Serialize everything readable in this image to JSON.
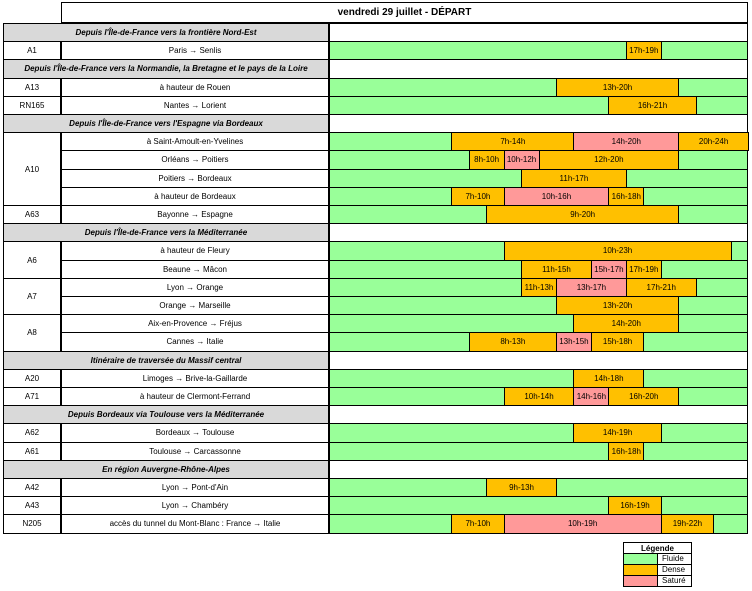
{
  "title": "vendredi 29 juillet - DÉPART",
  "colors": {
    "fluide": "#99ff99",
    "dense": "#ffc000",
    "sature": "#ff9999"
  },
  "sections": [
    {
      "label": "Depuis l'Île-de-France vers la frontière Nord-Est",
      "roads": [
        {
          "code": "A1",
          "rows": [
            {
              "route": "Paris → Senlis",
              "segs": [
                [
                  "D",
                  "17h-19h",
                  17,
                  19
                ]
              ]
            }
          ]
        }
      ]
    },
    {
      "label": "Depuis l'Île-de-France vers la Normandie, la Bretagne et le pays de la Loire",
      "roads": [
        {
          "code": "A13",
          "rows": [
            {
              "route": "à hauteur de Rouen",
              "segs": [
                [
                  "D",
                  "13h-20h",
                  13,
                  20
                ]
              ]
            }
          ]
        },
        {
          "code": "RN165",
          "rows": [
            {
              "route": "Nantes → Lorient",
              "segs": [
                [
                  "D",
                  "16h-21h",
                  16,
                  21
                ]
              ]
            }
          ]
        }
      ]
    },
    {
      "label": "Depuis l'Île-de-France vers l'Espagne via Bordeaux",
      "roads": [
        {
          "code": "A10",
          "rows": [
            {
              "route": "à Saint-Amoult-en-Yvelines",
              "segs": [
                [
                  "D",
                  "7h-14h",
                  7,
                  14
                ],
                [
                  "S",
                  "14h-20h",
                  14,
                  20
                ],
                [
                  "D",
                  "20h-24h",
                  20,
                  24
                ]
              ]
            },
            {
              "route": "Orléans → Poitiers",
              "segs": [
                [
                  "D",
                  "8h-10h",
                  8,
                  10
                ],
                [
                  "S",
                  "10h-12h",
                  10,
                  12
                ],
                [
                  "D",
                  "12h-20h",
                  12,
                  20
                ]
              ]
            },
            {
              "route": "Poitiers → Bordeaux",
              "segs": [
                [
                  "D",
                  "11h-17h",
                  11,
                  17
                ]
              ]
            },
            {
              "route": "à hauteur de Bordeaux",
              "segs": [
                [
                  "D",
                  "7h-10h",
                  7,
                  10
                ],
                [
                  "S",
                  "10h-16h",
                  10,
                  16
                ],
                [
                  "D",
                  "16h-18h",
                  16,
                  18
                ]
              ]
            }
          ]
        },
        {
          "code": "A63",
          "rows": [
            {
              "route": "Bayonne → Espagne",
              "segs": [
                [
                  "D",
                  "9h-20h",
                  9,
                  20
                ]
              ]
            }
          ]
        }
      ]
    },
    {
      "label": "Depuis l'Île-de-France vers la Méditerranée",
      "roads": [
        {
          "code": "A6",
          "rows": [
            {
              "route": "à hauteur de Fleury",
              "segs": [
                [
                  "D",
                  "10h-23h",
                  10,
                  23
                ]
              ]
            },
            {
              "route": "Beaune → Mâcon",
              "segs": [
                [
                  "D",
                  "11h-15h",
                  11,
                  15
                ],
                [
                  "S",
                  "15h-17h",
                  15,
                  17
                ],
                [
                  "D",
                  "17h-19h",
                  17,
                  19
                ]
              ]
            }
          ]
        },
        {
          "code": "A7",
          "rows": [
            {
              "route": "Lyon → Orange",
              "segs": [
                [
                  "D",
                  "11h-13h",
                  11,
                  13
                ],
                [
                  "S",
                  "13h-17h",
                  13,
                  17
                ],
                [
                  "D",
                  "17h-21h",
                  17,
                  21
                ]
              ]
            },
            {
              "route": "Orange → Marseille",
              "segs": [
                [
                  "D",
                  "13h-20h",
                  13,
                  20
                ]
              ]
            }
          ]
        },
        {
          "code": "A8",
          "rows": [
            {
              "route": "Aix-en-Provence → Fréjus",
              "segs": [
                [
                  "D",
                  "14h-20h",
                  14,
                  20
                ]
              ]
            },
            {
              "route": "Cannes → Italie",
              "segs": [
                [
                  "D",
                  "8h-13h",
                  8,
                  13
                ],
                [
                  "S",
                  "13h-15h",
                  13,
                  15
                ],
                [
                  "D",
                  "15h-18h",
                  15,
                  18
                ]
              ]
            }
          ]
        }
      ]
    },
    {
      "label": "Itinéraire de traversée du Massif central",
      "roads": [
        {
          "code": "A20",
          "rows": [
            {
              "route": "Limoges → Brive-la-Gaillarde",
              "segs": [
                [
                  "D",
                  "14h-18h",
                  14,
                  18
                ]
              ]
            }
          ]
        },
        {
          "code": "A71",
          "rows": [
            {
              "route": "à hauteur de Clermont-Ferrand",
              "segs": [
                [
                  "D",
                  "10h-14h",
                  10,
                  14
                ],
                [
                  "S",
                  "14h-16h",
                  14,
                  16
                ],
                [
                  "D",
                  "16h-20h",
                  16,
                  20
                ]
              ]
            }
          ]
        }
      ]
    },
    {
      "label": "Depuis Bordeaux via Toulouse vers la Méditerranée",
      "roads": [
        {
          "code": "A62",
          "rows": [
            {
              "route": "Bordeaux → Toulouse",
              "segs": [
                [
                  "D",
                  "14h-19h",
                  14,
                  19
                ]
              ]
            }
          ]
        },
        {
          "code": "A61",
          "rows": [
            {
              "route": "Toulouse → Carcassonne",
              "segs": [
                [
                  "D",
                  "16h-18h",
                  16,
                  18
                ]
              ]
            }
          ]
        }
      ]
    },
    {
      "label": "En région Auvergne-Rhône-Alpes",
      "roads": [
        {
          "code": "A42",
          "rows": [
            {
              "route": "Lyon → Pont-d'Ain",
              "segs": [
                [
                  "D",
                  "9h-13h",
                  9,
                  13
                ]
              ]
            }
          ]
        },
        {
          "code": "A43",
          "rows": [
            {
              "route": "Lyon → Chambéry",
              "segs": [
                [
                  "D",
                  "16h-19h",
                  16,
                  19
                ]
              ]
            }
          ]
        },
        {
          "code": "N205",
          "rows": [
            {
              "route": "accès du tunnel du Mont-Blanc : France → Italie",
              "segs": [
                [
                  "D",
                  "7h-10h",
                  7,
                  10
                ],
                [
                  "S",
                  "10h-19h",
                  10,
                  19
                ],
                [
                  "D",
                  "19h-22h",
                  19,
                  22
                ]
              ]
            }
          ]
        }
      ]
    }
  ],
  "legend": {
    "title": "Légende",
    "items": [
      {
        "label": "Fluide",
        "color": "#99ff99"
      },
      {
        "label": "Dense",
        "color": "#ffc000"
      },
      {
        "label": "Saturé",
        "color": "#ff9999"
      }
    ]
  }
}
